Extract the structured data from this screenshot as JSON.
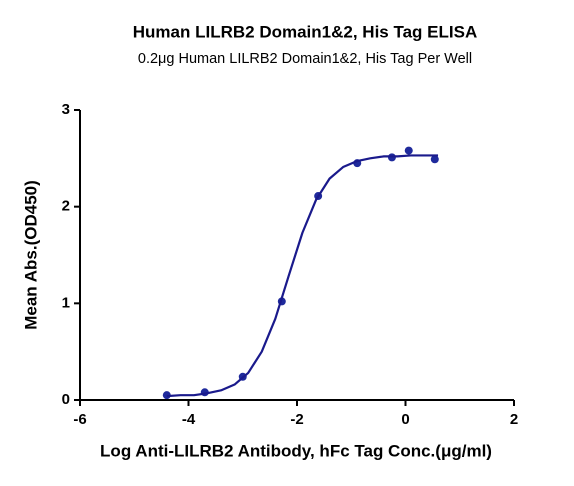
{
  "chart_data": {
    "type": "scatter",
    "title": "Human LILRB2 Domain1&2, His Tag ELISA",
    "subtitle": "0.2μg Human LILRB2 Domain1&2, His Tag Per Well",
    "x_label": "Log Anti-LILRB2 Antibody, hFc Tag Conc.(μg/ml)",
    "y_label": "Mean Abs.(OD450)",
    "xlim": [
      -6,
      2
    ],
    "ylim": [
      0,
      3
    ],
    "xticks": [
      -6,
      -4,
      -2,
      0,
      2
    ],
    "yticks": [
      0,
      1,
      2,
      3
    ],
    "grid": false,
    "series": [
      {
        "color": "#1f2a9c",
        "x": [
          -4.4,
          -3.7,
          -3.0,
          -2.28,
          -1.61,
          -0.89,
          -0.25,
          0.06,
          0.54
        ],
        "values": [
          0.05,
          0.08,
          0.24,
          1.02,
          2.11,
          2.45,
          2.51,
          2.58,
          2.49
        ]
      },
      {
        "color": "#1a1a8c",
        "fit": true,
        "x": [
          -4.4,
          -4.15,
          -3.9,
          -3.65,
          -3.4,
          -3.15,
          -2.9,
          -2.65,
          -2.4,
          -2.15,
          -1.9,
          -1.65,
          -1.4,
          -1.15,
          -0.9,
          -0.65,
          -0.4,
          -0.15,
          0.1,
          0.35,
          0.6
        ],
        "values": [
          0.04,
          0.05,
          0.05,
          0.07,
          0.1,
          0.16,
          0.28,
          0.5,
          0.84,
          1.29,
          1.73,
          2.07,
          2.29,
          2.41,
          2.47,
          2.5,
          2.52,
          2.52,
          2.53,
          2.53,
          2.53
        ]
      }
    ]
  }
}
